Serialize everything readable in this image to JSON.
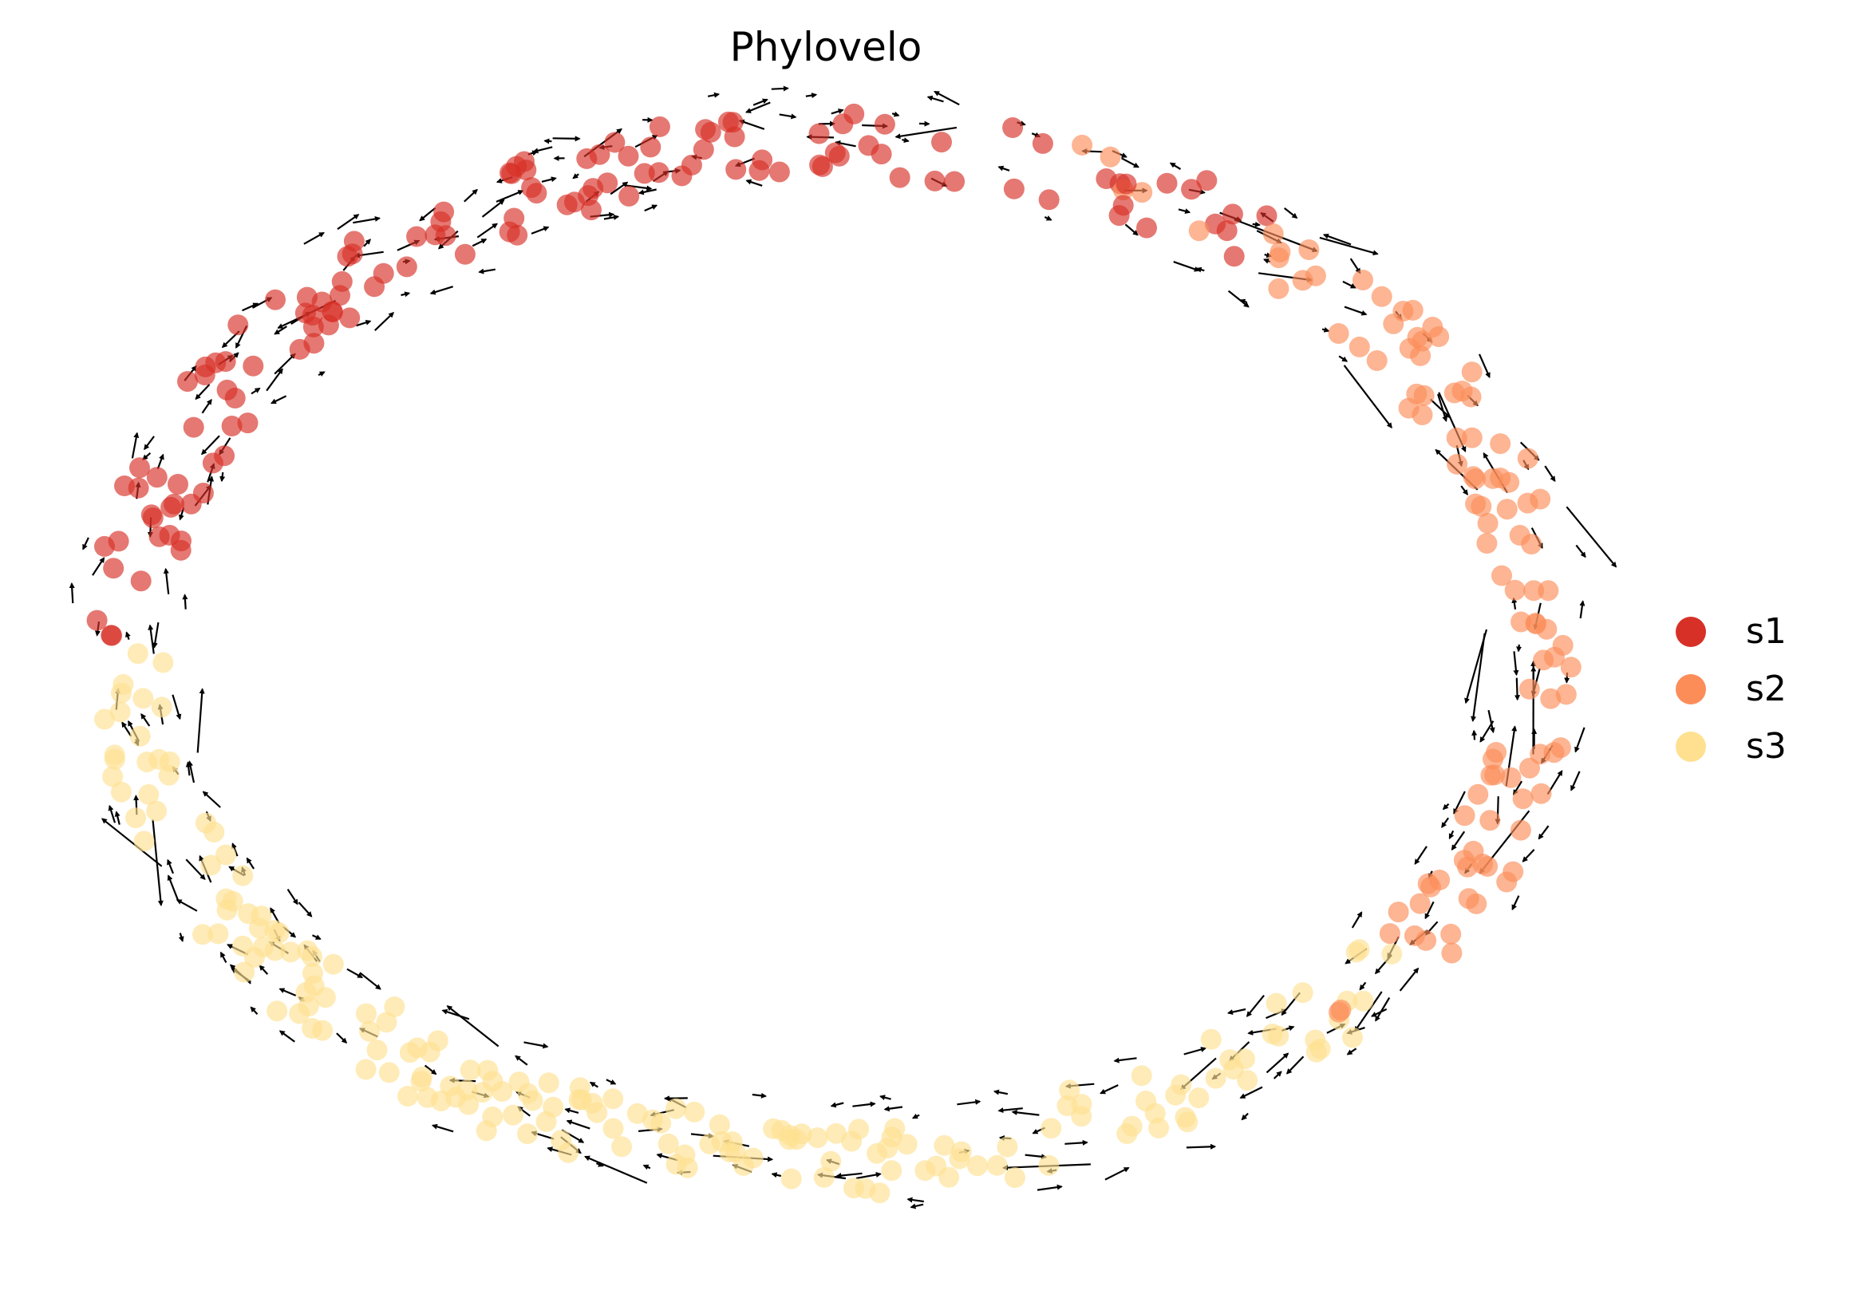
{
  "chart_data": {
    "type": "scatter",
    "title": "Phylovelo",
    "xlabel": "",
    "ylabel": "",
    "axes_visible": false,
    "grid": false,
    "overlay": "velocity-arrows",
    "legend_placement": "right",
    "series": [
      {
        "name": "s1",
        "color": "#d73027"
      },
      {
        "name": "s2",
        "color": "#fc8d59"
      },
      {
        "name": "s3",
        "color": "#fee090"
      }
    ]
  }
}
